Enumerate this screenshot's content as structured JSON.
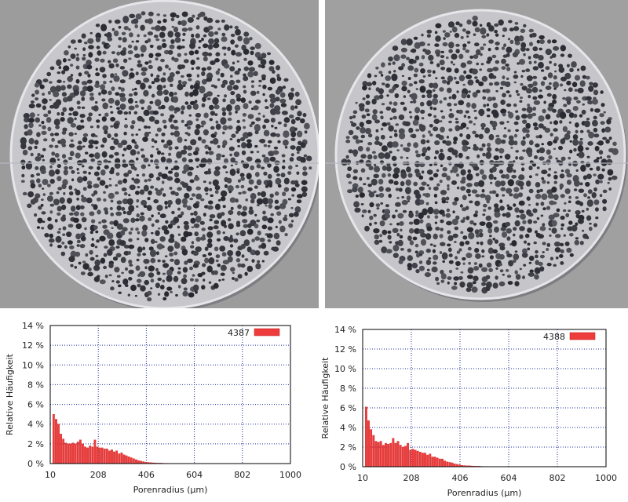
{
  "photos": [
    {
      "name": "foam-cross-section-left",
      "background": "#9c9c9c",
      "disc": "#c8c8cc"
    },
    {
      "name": "foam-cross-section-right",
      "background": "#a0a0a0",
      "disc": "#c6c6ca"
    }
  ],
  "colors": {
    "bar": "#ee3b3b",
    "bar_edge": "#c01818",
    "grid": "#1a2a9a",
    "frame": "#000000"
  },
  "chart_data": [
    {
      "type": "bar",
      "xlabel": "Porenradius (µm)",
      "ylabel": "Relative Häufigkeit",
      "legend": "4387",
      "legend_position": "top-right",
      "grid": true,
      "xlim": [
        10,
        1000
      ],
      "ylim": [
        0,
        14
      ],
      "xticks": [
        "10",
        "208",
        "406",
        "604",
        "802",
        "1000"
      ],
      "yticks": [
        "0 %",
        "2 %",
        "4 %",
        "6 %",
        "8 %",
        "10 %",
        "12 %",
        "14 %"
      ],
      "bin_start": 20,
      "bin_width": 10,
      "values": [
        5.0,
        4.5,
        4.0,
        3.0,
        2.5,
        2.1,
        2.0,
        2.0,
        2.1,
        2.0,
        2.2,
        2.4,
        2.0,
        1.7,
        1.6,
        1.8,
        1.7,
        2.4,
        1.7,
        1.6,
        1.6,
        1.5,
        1.5,
        1.3,
        1.4,
        1.2,
        1.3,
        1.0,
        1.1,
        0.9,
        0.8,
        0.7,
        0.6,
        0.5,
        0.4,
        0.3,
        0.25,
        0.2,
        0.15,
        0.12,
        0.1,
        0.08,
        0.07,
        0.05,
        0.05,
        0.04,
        0.03,
        0.03,
        0.02,
        0.02,
        0.02,
        0.01,
        0.01,
        0.01,
        0.01
      ]
    },
    {
      "type": "bar",
      "xlabel": "Porenradius (µm)",
      "ylabel": "Relative Häufigkeit",
      "legend": "4388",
      "legend_position": "top-right",
      "grid": true,
      "xlim": [
        10,
        1000
      ],
      "ylim": [
        0,
        14
      ],
      "xticks": [
        "10",
        "208",
        "406",
        "604",
        "802",
        "1000"
      ],
      "yticks": [
        "0 %",
        "2 %",
        "4 %",
        "6 %",
        "8 %",
        "10 %",
        "12 %",
        "14 %"
      ],
      "bin_start": 20,
      "bin_width": 10,
      "values": [
        6.1,
        4.7,
        3.8,
        3.2,
        2.6,
        2.5,
        2.6,
        2.2,
        2.4,
        2.3,
        2.4,
        2.9,
        2.4,
        2.6,
        2.2,
        2.0,
        2.1,
        2.4,
        1.7,
        1.8,
        1.7,
        1.6,
        1.5,
        1.4,
        1.4,
        1.2,
        1.3,
        1.0,
        1.0,
        0.9,
        0.8,
        0.8,
        0.6,
        0.5,
        0.45,
        0.4,
        0.3,
        0.25,
        0.2,
        0.15,
        0.12,
        0.1,
        0.1,
        0.08,
        0.07,
        0.06,
        0.05,
        0.04,
        0.03,
        0.03,
        0.02,
        0.02,
        0.02,
        0.01,
        0.01,
        0.01
      ]
    }
  ]
}
